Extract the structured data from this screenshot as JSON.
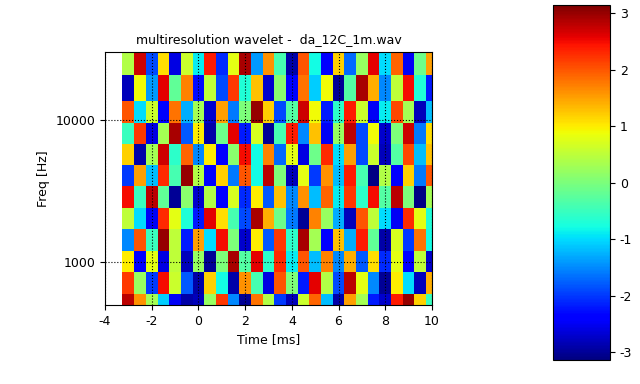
{
  "chart_data": {
    "type": "heatmap",
    "title": "multiresolution wavelet -  da_12C_1m.wav",
    "x_label": "Time [ms]",
    "y_label": "Freq [Hz]",
    "x": [
      -3,
      -2.5,
      -2,
      -1.5,
      -1,
      -0.5,
      0,
      0.5,
      1,
      1.5,
      2,
      2.5,
      3,
      3.5,
      4,
      4.5,
      5,
      5.5,
      6,
      6.5,
      7,
      7.5,
      8,
      8.5,
      9,
      9.5,
      10
    ],
    "y": [
      500,
      700,
      1000,
      1400,
      2000,
      2800,
      4000,
      5600,
      8000,
      11000,
      16000,
      25000
    ],
    "cells": [
      [
        2.8,
        1.6,
        0.3,
        -1.1,
        -2.5,
        -2.9,
        -2.8,
        0.2,
        2.2,
        -1.5,
        -3.0,
        1.8,
        0.4,
        -2.0,
        -2.8,
        0.6,
        1.9,
        -1.2,
        -2.9,
        1.5,
        0.3,
        -2.2,
        -2.7,
        2.4,
        3.0,
        1.2,
        -0.5
      ],
      [
        2.2,
        0.2,
        -2.0,
        2.5,
        0.6,
        -1.8,
        -2.9,
        1.2,
        -0.8,
        -2.9,
        1.6,
        -0.4,
        -2.6,
        2.0,
        0.0,
        -2.2,
        2.6,
        0.4,
        -1.9,
        2.8,
        0.8,
        -1.5,
        -3.0,
        1.0,
        -1.0,
        -2.8,
        1.4
      ],
      [
        1.0,
        -2.4,
        0.8,
        -2.6,
        0.5,
        -2.8,
        0.2,
        -3.0,
        0.0,
        2.9,
        -0.3,
        2.6,
        -0.6,
        2.3,
        -0.9,
        2.0,
        -1.2,
        1.7,
        -1.5,
        1.4,
        -1.8,
        1.1,
        -2.1,
        0.8,
        -2.4,
        0.5,
        -2.7
      ],
      [
        -1.5,
        2.0,
        -0.5,
        3.0,
        0.5,
        -2.2,
        1.5,
        -1.0,
        2.5,
        0.0,
        -2.7,
        1.0,
        -1.8,
        2.2,
        -0.6,
        2.9,
        0.3,
        -2.4,
        1.3,
        -1.3,
        2.4,
        -0.2,
        -2.9,
        0.7,
        -2.0,
        1.8,
        -0.8
      ],
      [
        0.5,
        -1.0,
        -2.5,
        2.3,
        0.8,
        -0.7,
        -2.2,
        2.6,
        1.1,
        -0.4,
        -1.9,
        2.9,
        1.4,
        -0.1,
        -1.6,
        -3.0,
        1.7,
        0.2,
        -1.3,
        -2.8,
        2.0,
        0.5,
        -1.0,
        -2.5,
        2.3,
        0.8,
        -0.7
      ],
      [
        2.5,
        -0.5,
        2.8,
        -0.2,
        -3.0,
        0.1,
        -2.7,
        0.4,
        -2.4,
        0.7,
        -2.1,
        1.0,
        -1.8,
        1.3,
        -1.5,
        1.6,
        -1.2,
        1.9,
        -0.9,
        2.2,
        -0.6,
        2.5,
        -0.3,
        2.8,
        0.0,
        -3.1,
        0.3
      ],
      [
        -2.0,
        1.5,
        -1.2,
        2.3,
        -0.4,
        3.0,
        0.4,
        -2.4,
        1.2,
        -1.6,
        2.0,
        -0.8,
        2.8,
        0.0,
        -2.8,
        0.8,
        -2.0,
        1.6,
        -1.2,
        2.4,
        -0.4,
        -3.1,
        0.4,
        -2.4,
        1.2,
        -1.6,
        2.0
      ],
      [
        1.2,
        -2.9,
        0.3,
        2.7,
        -0.6,
        1.9,
        -1.5,
        1.0,
        -2.4,
        0.1,
        2.5,
        -0.8,
        1.7,
        -1.7,
        0.8,
        -2.6,
        -0.1,
        2.3,
        -1.0,
        1.5,
        -1.9,
        0.6,
        -2.8,
        -0.3,
        2.1,
        -1.2,
        1.3
      ],
      [
        -0.5,
        2.2,
        -2.6,
        0.3,
        2.9,
        -1.8,
        1.0,
        -2.9,
        -0.1,
        2.6,
        -2.2,
        0.7,
        -3.0,
        -0.4,
        2.4,
        -1.5,
        1.3,
        -2.5,
        0.2,
        2.8,
        -1.9,
        0.9,
        -2.7,
        0.0,
        2.7,
        -1.6,
        1.1
      ],
      [
        2.0,
        -1.0,
        0.6,
        -2.4,
        1.8,
        -1.3,
        0.3,
        -2.7,
        1.5,
        -1.6,
        0.0,
        3.0,
        1.2,
        -1.9,
        -0.3,
        2.7,
        0.9,
        -2.2,
        -0.6,
        2.4,
        0.6,
        -2.5,
        -0.9,
        2.1,
        0.3,
        -2.8,
        -1.2
      ],
      [
        -2.8,
        0.9,
        -1.4,
        2.6,
        -0.2,
        1.7,
        -2.3,
        0.5,
        -1.9,
        2.2,
        -0.7,
        1.3,
        -2.7,
        0.1,
        -2.4,
        1.8,
        -1.1,
        0.9,
        -3.0,
        -0.3,
        2.9,
        1.4,
        -1.5,
        0.5,
        2.5,
        -0.7,
        -2.2
      ],
      [
        0.4,
        2.7,
        -1.9,
        1.1,
        -2.6,
        0.6,
        -0.9,
        2.4,
        -2.1,
        0.8,
        2.9,
        -1.4,
        1.6,
        -0.4,
        -2.9,
        2.0,
        -0.8,
        -2.4,
        1.2,
        -1.7,
        0.2,
        2.6,
        -1.0,
        1.9,
        -2.5,
        -0.1,
        1.5
      ]
    ],
    "xlim": [
      -4,
      10
    ],
    "xticks": [
      -4,
      -2,
      0,
      2,
      4,
      6,
      8,
      10
    ],
    "ylim": [
      500,
      30000
    ],
    "yticks": [
      1000,
      10000
    ],
    "log": "y",
    "grid": true,
    "colorbar_range": [
      -3.14,
      3.14
    ],
    "colorbar_ticks": [
      -3,
      -2,
      -1,
      0,
      1,
      2,
      3
    ]
  }
}
